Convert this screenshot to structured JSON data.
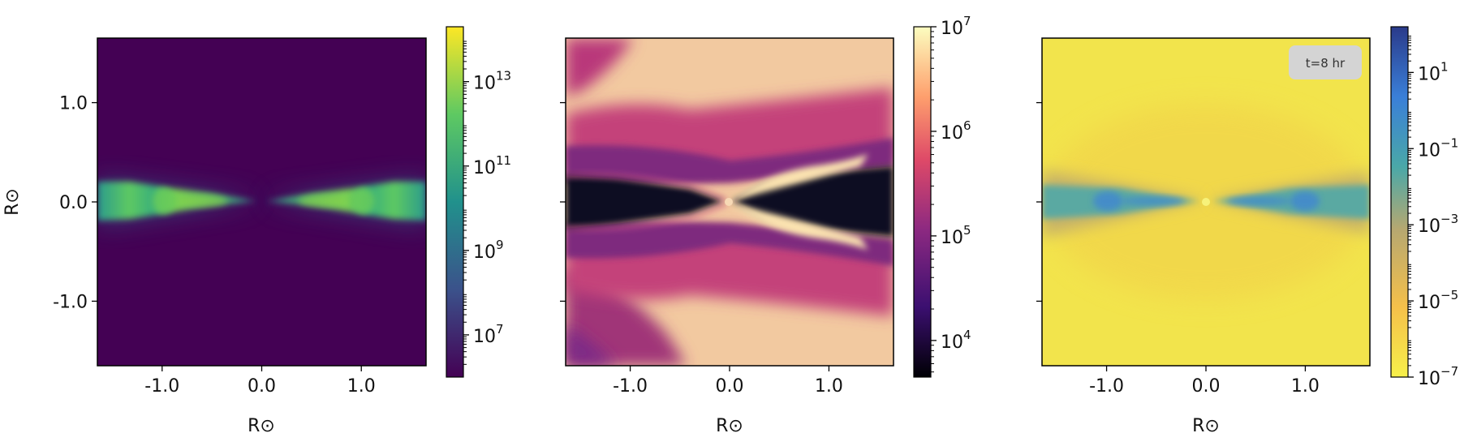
{
  "chart_data": [
    {
      "type": "heatmap",
      "panel": "left",
      "colormap": "viridis",
      "colormap_stops": [
        "#440154",
        "#3b528b",
        "#21918c",
        "#5ec962",
        "#fde725"
      ],
      "background_color": "#440154",
      "x_ticks": [
        {
          "v": -1.0,
          "label": "-1.0"
        },
        {
          "v": 0.0,
          "label": "0.0"
        },
        {
          "v": 1.0,
          "label": "1.0"
        }
      ],
      "y_ticks": [
        {
          "v": 1.0,
          "label": "1.0"
        },
        {
          "v": 0.0,
          "label": "0.0"
        },
        {
          "v": -1.0,
          "label": "-1.0"
        }
      ],
      "xlim": [
        -1.65,
        1.65
      ],
      "ylim": [
        -1.65,
        1.65
      ],
      "xlabel": "R⊙",
      "ylabel": "R⊙",
      "colorbar": {
        "scale": "log",
        "range_exp": [
          6,
          14.3
        ],
        "ticks": [
          {
            "exp": 7,
            "label": "10",
            "sup": "7"
          },
          {
            "exp": 9,
            "label": "10",
            "sup": "9"
          },
          {
            "exp": 11,
            "label": "10",
            "sup": "11"
          },
          {
            "exp": 13,
            "label": "10",
            "sup": "13"
          }
        ]
      }
    },
    {
      "type": "heatmap",
      "panel": "middle",
      "colormap": "magma",
      "colormap_stops": [
        "#000004",
        "#3b0f70",
        "#8c2981",
        "#de4968",
        "#fe9f6d",
        "#fcfdbf"
      ],
      "x_ticks": [
        {
          "v": -1.0,
          "label": "-1.0"
        },
        {
          "v": 0.0,
          "label": "0.0"
        },
        {
          "v": 1.0,
          "label": "1.0"
        }
      ],
      "xlim": [
        -1.65,
        1.65
      ],
      "ylim": [
        -1.65,
        1.65
      ],
      "xlabel": "R⊙",
      "colorbar": {
        "scale": "log",
        "range_exp": [
          3.65,
          7
        ],
        "ticks": [
          {
            "exp": 4,
            "label": "10",
            "sup": "4"
          },
          {
            "exp": 5,
            "label": "10",
            "sup": "5"
          },
          {
            "exp": 6,
            "label": "10",
            "sup": "6"
          },
          {
            "exp": 7,
            "label": "10",
            "sup": "7"
          }
        ]
      }
    },
    {
      "type": "heatmap",
      "panel": "right",
      "colormap": "plasma_r",
      "colormap_stops": [
        "#f7f04a",
        "#f5c04a",
        "#b7a870",
        "#4aa8a8",
        "#3a7fd8",
        "#2a3a8a"
      ],
      "x_ticks": [
        {
          "v": -1.0,
          "label": "-1.0"
        },
        {
          "v": 0.0,
          "label": "0.0"
        },
        {
          "v": 1.0,
          "label": "1.0"
        }
      ],
      "xlim": [
        -1.65,
        1.65
      ],
      "ylim": [
        -1.65,
        1.65
      ],
      "xlabel": "R⊙",
      "annotation": "t=8 hr",
      "colorbar": {
        "scale": "log",
        "range_exp": [
          -7,
          2.2
        ],
        "ticks": [
          {
            "exp": -7,
            "label": "10",
            "sup": "−7"
          },
          {
            "exp": -5,
            "label": "10",
            "sup": "−5"
          },
          {
            "exp": -3,
            "label": "10",
            "sup": "−3"
          },
          {
            "exp": -1,
            "label": "10",
            "sup": "−1"
          },
          {
            "exp": 1,
            "label": "10",
            "sup": "1"
          }
        ]
      }
    }
  ]
}
